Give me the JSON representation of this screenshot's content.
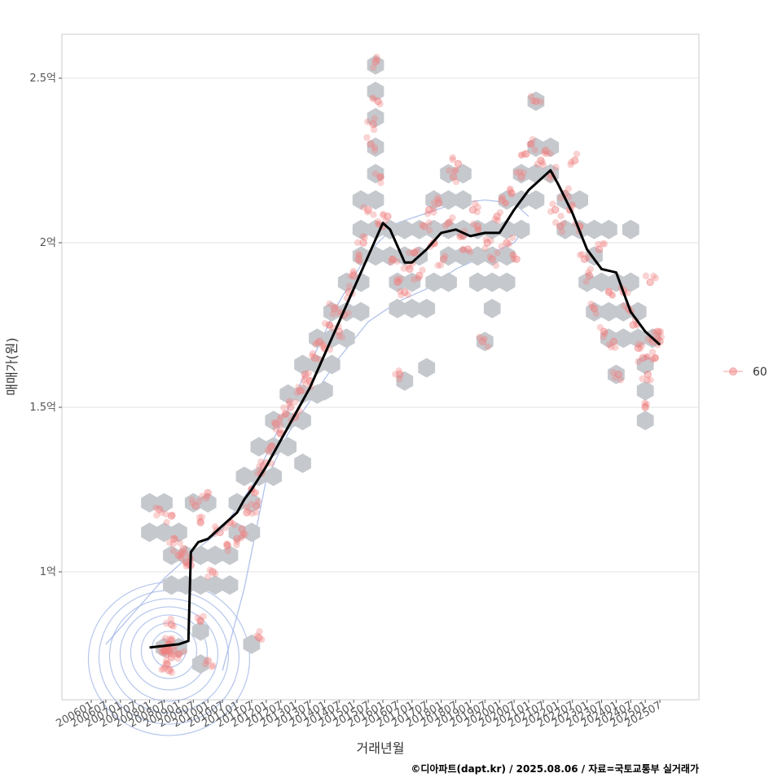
{
  "chart_data": {
    "type": "scatter",
    "title": "",
    "xlabel": "거래년월",
    "ylabel": "매매가(원)",
    "caption": "©디아파트(dapt.kr) / 2025.08.06 / 자료=국토교통부 실거래가",
    "x_ticks": [
      "200601",
      "200607",
      "200701",
      "200707",
      "200801",
      "200807",
      "200901",
      "200907",
      "201001",
      "201007",
      "201101",
      "201107",
      "201201",
      "201207",
      "201301",
      "201307",
      "201401",
      "201407",
      "201501",
      "201507",
      "201601",
      "201607",
      "201701",
      "201707",
      "201801",
      "201807",
      "201901",
      "201907",
      "202001",
      "202007",
      "202101",
      "202107",
      "202201",
      "202207",
      "202301",
      "202307",
      "202401",
      "202407",
      "202501",
      "202507"
    ],
    "y_ticks": [
      {
        "value": 1.0,
        "label": "1억"
      },
      {
        "value": 1.5,
        "label": "1.5억"
      },
      {
        "value": 2.0,
        "label": "2억"
      },
      {
        "value": 2.5,
        "label": "2.5억"
      }
    ],
    "x_range": [
      "2006-01",
      "2025-08"
    ],
    "ylim": [
      0.62,
      2.64
    ],
    "grid": true,
    "legend": {
      "position": "right",
      "entries": [
        {
          "label": "60",
          "color": "#f08080"
        }
      ]
    },
    "colors": {
      "points": "#f08080",
      "hexbin": "#c5c9ce",
      "trend": "#000000",
      "density": "#9db3e6"
    },
    "trend_line": [
      [
        "2008-01",
        0.77
      ],
      [
        "2008-07",
        0.775
      ],
      [
        "2009-01",
        0.78
      ],
      [
        "2009-05",
        0.79
      ],
      [
        "2009-06",
        1.06
      ],
      [
        "2009-09",
        1.09
      ],
      [
        "2010-01",
        1.1
      ],
      [
        "2010-07",
        1.14
      ],
      [
        "2011-01",
        1.18
      ],
      [
        "2011-04",
        1.22
      ],
      [
        "2011-07",
        1.25
      ],
      [
        "2012-01",
        1.32
      ],
      [
        "2012-07",
        1.4
      ],
      [
        "2013-01",
        1.48
      ],
      [
        "2013-07",
        1.56
      ],
      [
        "2014-01",
        1.66
      ],
      [
        "2014-07",
        1.76
      ],
      [
        "2015-01",
        1.86
      ],
      [
        "2015-07",
        1.96
      ],
      [
        "2016-01",
        2.06
      ],
      [
        "2016-04",
        2.04
      ],
      [
        "2016-07",
        1.99
      ],
      [
        "2016-10",
        1.94
      ],
      [
        "2017-01",
        1.94
      ],
      [
        "2017-07",
        1.98
      ],
      [
        "2018-01",
        2.03
      ],
      [
        "2018-07",
        2.04
      ],
      [
        "2019-01",
        2.02
      ],
      [
        "2019-07",
        2.03
      ],
      [
        "2020-01",
        2.03
      ],
      [
        "2020-07",
        2.1
      ],
      [
        "2021-01",
        2.16
      ],
      [
        "2021-07",
        2.2
      ],
      [
        "2021-10",
        2.22
      ],
      [
        "2022-01",
        2.18
      ],
      [
        "2022-07",
        2.09
      ],
      [
        "2023-01",
        1.98
      ],
      [
        "2023-07",
        1.92
      ],
      [
        "2024-01",
        1.91
      ],
      [
        "2024-04",
        1.85
      ],
      [
        "2024-07",
        1.79
      ],
      [
        "2025-01",
        1.73
      ],
      [
        "2025-07",
        1.69
      ]
    ],
    "scatter_points": [
      [
        "2008-07",
        0.76
      ],
      [
        "2008-08",
        0.77
      ],
      [
        "2008-08",
        0.75
      ],
      [
        "2008-09",
        0.78
      ],
      [
        "2008-09",
        0.76
      ],
      [
        "2008-10",
        0.74
      ],
      [
        "2008-10",
        0.79
      ],
      [
        "2008-08",
        0.72
      ],
      [
        "2008-09",
        0.7
      ],
      [
        "2008-10",
        0.84
      ],
      [
        "2009-01",
        0.75
      ],
      [
        "2009-10",
        0.85
      ],
      [
        "2010-01",
        0.73
      ],
      [
        "2011-10",
        0.8
      ],
      [
        "2008-05",
        1.19
      ],
      [
        "2008-10",
        1.17
      ],
      [
        "2008-11",
        1.1
      ],
      [
        "2009-01",
        1.05
      ],
      [
        "2009-03",
        1.07
      ],
      [
        "2009-04",
        1.03
      ],
      [
        "2009-06",
        1.02
      ],
      [
        "2009-08",
        1.2
      ],
      [
        "2009-10",
        1.15
      ],
      [
        "2010-01",
        1.24
      ],
      [
        "2010-03",
        1.0
      ],
      [
        "2010-06",
        1.12
      ],
      [
        "2010-09",
        1.08
      ],
      [
        "2010-10",
        1.15
      ],
      [
        "2011-01",
        1.1
      ],
      [
        "2011-03",
        1.13
      ],
      [
        "2011-05",
        1.18
      ],
      [
        "2011-07",
        1.25
      ],
      [
        "2011-09",
        1.2
      ],
      [
        "2011-11",
        1.3
      ],
      [
        "2012-01",
        1.33
      ],
      [
        "2012-03",
        1.38
      ],
      [
        "2012-05",
        1.45
      ],
      [
        "2012-07",
        1.42
      ],
      [
        "2012-09",
        1.48
      ],
      [
        "2012-11",
        1.5
      ],
      [
        "2013-01",
        1.47
      ],
      [
        "2013-03",
        1.55
      ],
      [
        "2013-05",
        1.6
      ],
      [
        "2013-07",
        1.58
      ],
      [
        "2013-09",
        1.65
      ],
      [
        "2013-11",
        1.7
      ],
      [
        "2014-01",
        1.68
      ],
      [
        "2014-03",
        1.75
      ],
      [
        "2014-05",
        1.8
      ],
      [
        "2014-07",
        1.73
      ],
      [
        "2014-09",
        1.78
      ],
      [
        "2014-11",
        1.85
      ],
      [
        "2015-01",
        1.9
      ],
      [
        "2015-03",
        1.95
      ],
      [
        "2015-05",
        2.0
      ],
      [
        "2015-07",
        2.1
      ],
      [
        "2015-08",
        2.3
      ],
      [
        "2015-09",
        2.36
      ],
      [
        "2015-10",
        2.55
      ],
      [
        "2015-11",
        2.43
      ],
      [
        "2015-12",
        2.2
      ],
      [
        "2016-01",
        2.05
      ],
      [
        "2016-03",
        2.08
      ],
      [
        "2016-05",
        1.95
      ],
      [
        "2016-07",
        1.88
      ],
      [
        "2016-08",
        1.6
      ],
      [
        "2016-10",
        1.85
      ],
      [
        "2016-12",
        1.92
      ],
      [
        "2017-02",
        1.97
      ],
      [
        "2017-04",
        1.9
      ],
      [
        "2017-06",
        2.05
      ],
      [
        "2017-08",
        2.1
      ],
      [
        "2017-10",
        2.0
      ],
      [
        "2017-12",
        2.12
      ],
      [
        "2018-02",
        1.95
      ],
      [
        "2018-04",
        2.06
      ],
      [
        "2018-06",
        2.2
      ],
      [
        "2018-08",
        2.24
      ],
      [
        "2018-10",
        2.02
      ],
      [
        "2018-12",
        1.98
      ],
      [
        "2019-02",
        2.1
      ],
      [
        "2019-04",
        2.05
      ],
      [
        "2019-06",
        1.7
      ],
      [
        "2019-08",
        2.0
      ],
      [
        "2019-10",
        1.95
      ],
      [
        "2019-12",
        2.08
      ],
      [
        "2020-02",
        2.13
      ],
      [
        "2020-04",
        2.0
      ],
      [
        "2020-06",
        2.15
      ],
      [
        "2020-08",
        1.95
      ],
      [
        "2020-10",
        2.2
      ],
      [
        "2020-12",
        2.27
      ],
      [
        "2021-02",
        2.3
      ],
      [
        "2021-04",
        2.43
      ],
      [
        "2021-06",
        2.25
      ],
      [
        "2021-08",
        2.28
      ],
      [
        "2021-10",
        2.21
      ],
      [
        "2021-12",
        2.1
      ],
      [
        "2022-02",
        2.05
      ],
      [
        "2022-04",
        2.15
      ],
      [
        "2022-06",
        2.1
      ],
      [
        "2022-08",
        2.25
      ],
      [
        "2022-10",
        2.05
      ],
      [
        "2022-12",
        1.95
      ],
      [
        "2023-02",
        1.9
      ],
      [
        "2023-04",
        1.8
      ],
      [
        "2023-06",
        1.98
      ],
      [
        "2023-08",
        1.73
      ],
      [
        "2023-10",
        1.85
      ],
      [
        "2023-12",
        1.7
      ],
      [
        "2024-02",
        1.6
      ],
      [
        "2024-04",
        1.85
      ],
      [
        "2024-06",
        1.8
      ],
      [
        "2024-08",
        1.75
      ],
      [
        "2024-10",
        1.68
      ],
      [
        "2024-12",
        1.65
      ],
      [
        "2025-01",
        1.5
      ],
      [
        "2025-02",
        1.6
      ],
      [
        "2025-03",
        1.88
      ],
      [
        "2025-04",
        1.7
      ],
      [
        "2025-05",
        1.65
      ],
      [
        "2025-06",
        1.73
      ],
      [
        "2025-07",
        1.7
      ]
    ],
    "hexbins": [
      [
        "2008-01",
        1.21
      ],
      [
        "2008-07",
        1.21
      ],
      [
        "2008-01",
        1.12
      ],
      [
        "2008-07",
        1.12
      ],
      [
        "2009-01",
        1.12
      ],
      [
        "2009-07",
        1.21
      ],
      [
        "2010-01",
        1.21
      ],
      [
        "2008-10",
        1.05
      ],
      [
        "2009-04",
        1.05
      ],
      [
        "2009-10",
        1.05
      ],
      [
        "2010-04",
        1.05
      ],
      [
        "2010-10",
        1.05
      ],
      [
        "2008-10",
        0.96
      ],
      [
        "2009-04",
        0.96
      ],
      [
        "2009-10",
        0.96
      ],
      [
        "2010-04",
        0.96
      ],
      [
        "2010-10",
        0.96
      ],
      [
        "2008-07",
        0.77
      ],
      [
        "2009-01",
        0.77
      ],
      [
        "2009-10",
        0.82
      ],
      [
        "2009-10",
        0.72
      ],
      [
        "2011-07",
        0.78
      ],
      [
        "2011-01",
        1.12
      ],
      [
        "2011-07",
        1.12
      ],
      [
        "2011-01",
        1.21
      ],
      [
        "2011-07",
        1.21
      ],
      [
        "2011-04",
        1.29
      ],
      [
        "2011-10",
        1.29
      ],
      [
        "2012-04",
        1.29
      ],
      [
        "2011-10",
        1.38
      ],
      [
        "2012-04",
        1.38
      ],
      [
        "2012-10",
        1.38
      ],
      [
        "2012-04",
        1.46
      ],
      [
        "2012-10",
        1.46
      ],
      [
        "2013-04",
        1.46
      ],
      [
        "2012-10",
        1.54
      ],
      [
        "2013-04",
        1.54
      ],
      [
        "2013-10",
        1.54
      ],
      [
        "2013-04",
        1.63
      ],
      [
        "2013-10",
        1.63
      ],
      [
        "2014-04",
        1.63
      ],
      [
        "2013-10",
        1.71
      ],
      [
        "2014-04",
        1.71
      ],
      [
        "2014-10",
        1.71
      ],
      [
        "2014-04",
        1.79
      ],
      [
        "2014-10",
        1.79
      ],
      [
        "2015-04",
        1.79
      ],
      [
        "2014-10",
        1.88
      ],
      [
        "2015-04",
        1.88
      ],
      [
        "2015-04",
        1.96
      ],
      [
        "2015-10",
        1.96
      ],
      [
        "2015-04",
        2.04
      ],
      [
        "2015-10",
        2.04
      ],
      [
        "2015-04",
        2.13
      ],
      [
        "2015-10",
        2.13
      ],
      [
        "2015-10",
        2.21
      ],
      [
        "2015-10",
        2.29
      ],
      [
        "2015-10",
        2.38
      ],
      [
        "2015-10",
        2.46
      ],
      [
        "2015-10",
        2.54
      ],
      [
        "2013-04",
        1.33
      ],
      [
        "2014-01",
        1.55
      ],
      [
        "2016-04",
        2.04
      ],
      [
        "2016-10",
        2.04
      ],
      [
        "2016-04",
        1.96
      ],
      [
        "2016-10",
        1.96
      ],
      [
        "2017-04",
        1.96
      ],
      [
        "2016-07",
        1.88
      ],
      [
        "2017-01",
        1.88
      ],
      [
        "2016-07",
        1.8
      ],
      [
        "2017-01",
        1.8
      ],
      [
        "2017-07",
        1.8
      ],
      [
        "2016-10",
        1.58
      ],
      [
        "2017-04",
        2.04
      ],
      [
        "2017-10",
        2.04
      ],
      [
        "2017-10",
        2.13
      ],
      [
        "2018-04",
        2.13
      ],
      [
        "2018-04",
        2.04
      ],
      [
        "2018-10",
        2.04
      ],
      [
        "2018-10",
        2.13
      ],
      [
        "2018-04",
        2.21
      ],
      [
        "2018-10",
        2.21
      ],
      [
        "2017-10",
        1.88
      ],
      [
        "2018-04",
        1.88
      ],
      [
        "2018-04",
        1.96
      ],
      [
        "2018-10",
        1.96
      ],
      [
        "2019-04",
        1.96
      ],
      [
        "2019-04",
        2.04
      ],
      [
        "2019-10",
        2.04
      ],
      [
        "2019-10",
        1.96
      ],
      [
        "2019-04",
        1.88
      ],
      [
        "2019-10",
        1.88
      ],
      [
        "2019-10",
        1.8
      ],
      [
        "2020-04",
        1.88
      ],
      [
        "2020-04",
        1.96
      ],
      [
        "2020-04",
        2.04
      ],
      [
        "2020-10",
        2.04
      ],
      [
        "2020-04",
        2.13
      ],
      [
        "2020-10",
        2.13
      ],
      [
        "2021-04",
        2.13
      ],
      [
        "2020-10",
        2.21
      ],
      [
        "2021-04",
        2.21
      ],
      [
        "2021-10",
        2.21
      ],
      [
        "2021-04",
        2.29
      ],
      [
        "2021-10",
        2.29
      ],
      [
        "2021-04",
        2.43
      ],
      [
        "2019-07",
        1.7
      ],
      [
        "2017-07",
        1.62
      ],
      [
        "2022-04",
        2.13
      ],
      [
        "2022-04",
        2.04
      ],
      [
        "2022-10",
        2.04
      ],
      [
        "2022-10",
        2.13
      ],
      [
        "2023-04",
        2.04
      ],
      [
        "2023-04",
        1.96
      ],
      [
        "2023-10",
        2.04
      ],
      [
        "2023-01",
        1.88
      ],
      [
        "2023-07",
        1.88
      ],
      [
        "2024-01",
        1.88
      ],
      [
        "2023-04",
        1.79
      ],
      [
        "2023-10",
        1.79
      ],
      [
        "2023-10",
        1.71
      ],
      [
        "2024-04",
        1.71
      ],
      [
        "2024-04",
        1.79
      ],
      [
        "2024-10",
        1.79
      ],
      [
        "2024-10",
        1.71
      ],
      [
        "2024-07",
        1.88
      ],
      [
        "2025-04",
        1.71
      ],
      [
        "2025-01",
        1.63
      ],
      [
        "2025-01",
        1.55
      ],
      [
        "2025-01",
        1.46
      ],
      [
        "2024-01",
        1.6
      ],
      [
        "2024-07",
        2.04
      ]
    ]
  }
}
